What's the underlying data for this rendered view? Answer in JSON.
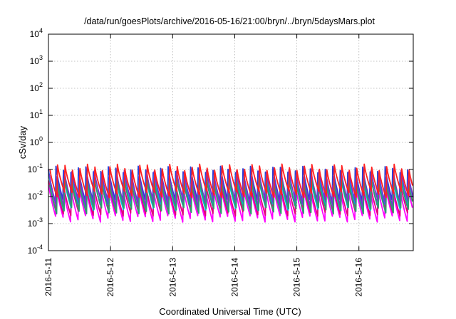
{
  "chart_data": {
    "type": "line",
    "title": "/data/run/goesPlots/archive/2016-05-16/21:00/bryn/../bryn/5daysMars.plot",
    "xlabel": "Coordinated Universal Time (UTC)",
    "ylabel": "cSv/day",
    "yscale": "log",
    "ylim": [
      0.0001,
      10000
    ],
    "y_ticks": [
      {
        "base": "10",
        "exp": "-4",
        "value": 0.0001
      },
      {
        "base": "10",
        "exp": "-3",
        "value": 0.001
      },
      {
        "base": "10",
        "exp": "-2",
        "value": 0.01
      },
      {
        "base": "10",
        "exp": "-1",
        "value": 0.1
      },
      {
        "base": "10",
        "exp": "0",
        "value": 1
      },
      {
        "base": "10",
        "exp": "1",
        "value": 10
      },
      {
        "base": "10",
        "exp": "2",
        "value": 100
      },
      {
        "base": "10",
        "exp": "3",
        "value": 1000
      },
      {
        "base": "10",
        "exp": "4",
        "value": 10000
      }
    ],
    "xlim": [
      "2016-05-11",
      "2016-05-16 21:00"
    ],
    "x_ticks": [
      "2016-5-11",
      "2016-5-12",
      "2016-5-13",
      "2016-5-14",
      "2016-5-15",
      "2016-5-16"
    ],
    "grid": true,
    "cycles_per_day": 8.3,
    "series": [
      {
        "color": "#2a3fd8",
        "peak": 0.1,
        "trough": 0.006
      },
      {
        "color": "#ff00ff",
        "peak": 0.022,
        "trough": 0.0015
      },
      {
        "color": "#e0007a",
        "peak": 0.03,
        "trough": 0.0025
      },
      {
        "color": "#00b8d8",
        "peak": 0.05,
        "trough": 0.004
      },
      {
        "color": "#7a2fd0",
        "peak": 0.07,
        "trough": 0.005
      },
      {
        "color": "#2e9e6e",
        "peak": 0.035,
        "trough": 0.003
      },
      {
        "color": "#ff2020",
        "peak": 0.12,
        "trough": 0.012
      }
    ]
  }
}
